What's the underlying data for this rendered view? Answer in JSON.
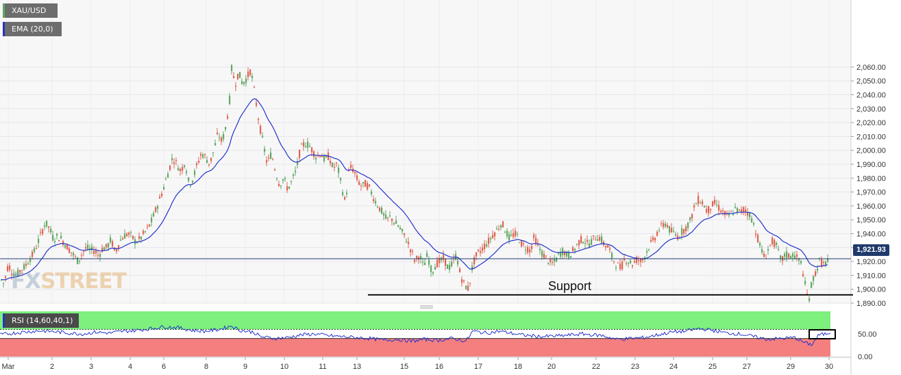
{
  "symbol_tag": "XAU/USD",
  "ema_tag": "EMA (20,0)",
  "rsi_tag": "RSI (14,60,40,1)",
  "current_price_label": "1,921.93",
  "support_label": "Support",
  "watermark": {
    "left": "FX",
    "right": "STREET"
  },
  "colors": {
    "up_candle": "#5fa862",
    "down_candle": "#e0624f",
    "ema_line": "#2233cc",
    "rsi_line": "#2233cc",
    "rsi_overbought_zone": "#7df07d",
    "rsi_oversold_zone": "#f47f7f",
    "price_badge": "#1f3a6b"
  },
  "chart_data": [
    {
      "type": "candlestick",
      "title": "XAU/USD",
      "indicator": "EMA (20,0)",
      "x_ticks": [
        "Mar",
        "2",
        "3",
        "4",
        "6",
        "8",
        "9",
        "10",
        "11",
        "13",
        "15",
        "16",
        "17",
        "18",
        "20",
        "22",
        "23",
        "24",
        "25",
        "27",
        "29",
        "30"
      ],
      "ylim": [
        1887,
        2071
      ],
      "y_ticks": [
        1890,
        1900,
        1910,
        1920,
        1930,
        1940,
        1950,
        1960,
        1970,
        1980,
        1990,
        2000,
        2010,
        2020,
        2030,
        2040,
        2050,
        2060
      ],
      "y_tick_labels": [
        "1,890.00",
        "1,900.00",
        "1,910.00",
        "1,920.00",
        "1,930.00",
        "1,940.00",
        "1,950.00",
        "1,960.00",
        "1,970.00",
        "1,980.00",
        "1,990.00",
        "2,000.00",
        "2,010.00",
        "2,020.00",
        "2,030.00",
        "2,040.00",
        "2,050.00",
        "2,060.00"
      ],
      "current_price": 1921.93,
      "support_level": 1896,
      "path": [
        [
          0,
          1908
        ],
        [
          6,
          1904
        ],
        [
          12,
          1918
        ],
        [
          18,
          1912
        ],
        [
          24,
          1910
        ],
        [
          30,
          1914
        ],
        [
          36,
          1916
        ],
        [
          42,
          1921
        ],
        [
          48,
          1925
        ],
        [
          54,
          1932
        ],
        [
          60,
          1940
        ],
        [
          66,
          1948
        ],
        [
          72,
          1944
        ],
        [
          78,
          1936
        ],
        [
          84,
          1938
        ],
        [
          90,
          1936
        ],
        [
          96,
          1932
        ],
        [
          102,
          1928
        ],
        [
          108,
          1924
        ],
        [
          114,
          1920
        ],
        [
          120,
          1926
        ],
        [
          126,
          1930
        ],
        [
          132,
          1928
        ],
        [
          138,
          1928
        ],
        [
          144,
          1924
        ],
        [
          150,
          1930
        ],
        [
          156,
          1930
        ],
        [
          162,
          1936
        ],
        [
          168,
          1926
        ],
        [
          174,
          1934
        ],
        [
          180,
          1938
        ],
        [
          186,
          1940
        ],
        [
          192,
          1938
        ],
        [
          198,
          1934
        ],
        [
          204,
          1936
        ],
        [
          210,
          1940
        ],
        [
          216,
          1944
        ],
        [
          222,
          1950
        ],
        [
          228,
          1958
        ],
        [
          234,
          1966
        ],
        [
          240,
          1975
        ],
        [
          246,
          1985
        ],
        [
          252,
          1995
        ],
        [
          258,
          1990
        ],
        [
          264,
          1985
        ],
        [
          270,
          1992
        ],
        [
          276,
          1975
        ],
        [
          282,
          1980
        ],
        [
          288,
          1990
        ],
        [
          294,
          1998
        ],
        [
          300,
          1995
        ],
        [
          306,
          1990
        ],
        [
          312,
          2000
        ],
        [
          318,
          2012
        ],
        [
          324,
          2006
        ],
        [
          330,
          2018
        ],
        [
          336,
          2040
        ],
        [
          339,
          2068
        ],
        [
          342,
          2045
        ],
        [
          348,
          2056
        ],
        [
          354,
          2048
        ],
        [
          360,
          2052
        ],
        [
          366,
          2058
        ],
        [
          372,
          2040
        ],
        [
          378,
          2020
        ],
        [
          384,
          2005
        ],
        [
          390,
          1990
        ],
        [
          396,
          1998
        ],
        [
          402,
          1985
        ],
        [
          408,
          1975
        ],
        [
          414,
          1980
        ],
        [
          420,
          1972
        ],
        [
          426,
          1978
        ],
        [
          432,
          1985
        ],
        [
          438,
          2000
        ],
        [
          444,
          2005
        ],
        [
          450,
          2004
        ],
        [
          456,
          2000
        ],
        [
          462,
          1995
        ],
        [
          468,
          1998
        ],
        [
          474,
          1993
        ],
        [
          480,
          1996
        ],
        [
          486,
          1987
        ],
        [
          492,
          1990
        ],
        [
          498,
          1975
        ],
        [
          504,
          1962
        ],
        [
          510,
          1988
        ],
        [
          516,
          1986
        ],
        [
          522,
          1978
        ],
        [
          528,
          1974
        ],
        [
          534,
          1976
        ],
        [
          540,
          1972
        ],
        [
          546,
          1965
        ],
        [
          552,
          1960
        ],
        [
          558,
          1955
        ],
        [
          564,
          1950
        ],
        [
          570,
          1952
        ],
        [
          576,
          1948
        ],
        [
          582,
          1945
        ],
        [
          588,
          1940
        ],
        [
          594,
          1935
        ],
        [
          600,
          1928
        ],
        [
          606,
          1920
        ],
        [
          612,
          1925
        ],
        [
          618,
          1916
        ],
        [
          624,
          1925
        ],
        [
          630,
          1912
        ],
        [
          636,
          1918
        ],
        [
          642,
          1920
        ],
        [
          648,
          1922
        ],
        [
          654,
          1915
        ],
        [
          660,
          1918
        ],
        [
          666,
          1925
        ],
        [
          672,
          1910
        ],
        [
          678,
          1903
        ],
        [
          684,
          1900
        ],
        [
          690,
          1918
        ],
        [
          696,
          1925
        ],
        [
          702,
          1928
        ],
        [
          708,
          1932
        ],
        [
          714,
          1935
        ],
        [
          720,
          1940
        ],
        [
          726,
          1943
        ],
        [
          732,
          1948
        ],
        [
          738,
          1942
        ],
        [
          744,
          1936
        ],
        [
          750,
          1940
        ],
        [
          756,
          1938
        ],
        [
          762,
          1932
        ],
        [
          768,
          1930
        ],
        [
          774,
          1928
        ],
        [
          780,
          1938
        ],
        [
          786,
          1930
        ],
        [
          792,
          1925
        ],
        [
          798,
          1922
        ],
        [
          804,
          1918
        ],
        [
          810,
          1920
        ],
        [
          816,
          1925
        ],
        [
          822,
          1928
        ],
        [
          828,
          1924
        ],
        [
          834,
          1926
        ],
        [
          840,
          1930
        ],
        [
          846,
          1935
        ],
        [
          852,
          1936
        ],
        [
          858,
          1932
        ],
        [
          864,
          1935
        ],
        [
          870,
          1938
        ],
        [
          876,
          1937
        ],
        [
          882,
          1932
        ],
        [
          888,
          1930
        ],
        [
          894,
          1922
        ],
        [
          900,
          1918
        ],
        [
          906,
          1915
        ],
        [
          912,
          1922
        ],
        [
          918,
          1920
        ],
        [
          924,
          1918
        ],
        [
          930,
          1922
        ],
        [
          936,
          1920
        ],
        [
          942,
          1925
        ],
        [
          948,
          1932
        ],
        [
          954,
          1935
        ],
        [
          960,
          1942
        ],
        [
          966,
          1945
        ],
        [
          972,
          1948
        ],
        [
          978,
          1942
        ],
        [
          984,
          1940
        ],
        [
          990,
          1938
        ],
        [
          996,
          1942
        ],
        [
          1002,
          1945
        ],
        [
          1008,
          1950
        ],
        [
          1014,
          1960
        ],
        [
          1020,
          1965
        ],
        [
          1026,
          1962
        ],
        [
          1032,
          1956
        ],
        [
          1038,
          1960
        ],
        [
          1044,
          1962
        ],
        [
          1050,
          1958
        ],
        [
          1056,
          1955
        ],
        [
          1062,
          1952
        ],
        [
          1068,
          1955
        ],
        [
          1074,
          1958
        ],
        [
          1080,
          1955
        ],
        [
          1086,
          1958
        ],
        [
          1092,
          1955
        ],
        [
          1098,
          1950
        ],
        [
          1104,
          1940
        ],
        [
          1110,
          1930
        ],
        [
          1116,
          1922
        ],
        [
          1122,
          1930
        ],
        [
          1128,
          1935
        ],
        [
          1134,
          1930
        ],
        [
          1140,
          1920
        ],
        [
          1146,
          1925
        ],
        [
          1152,
          1924
        ],
        [
          1158,
          1925
        ],
        [
          1164,
          1922
        ],
        [
          1170,
          1918
        ],
        [
          1176,
          1900
        ],
        [
          1180,
          1892
        ],
        [
          1185,
          1905
        ],
        [
          1190,
          1912
        ],
        [
          1196,
          1920
        ],
        [
          1202,
          1918
        ],
        [
          1208,
          1920
        ],
        [
          1210,
          1922
        ]
      ]
    },
    {
      "type": "line",
      "title": "RSI (14,60,40,1)",
      "ylim": [
        0,
        100
      ],
      "y_ticks": [
        0,
        50
      ],
      "y_tick_labels": [
        "0.00",
        "50.00"
      ],
      "bands": {
        "upper": 60,
        "lower": 40
      },
      "path": [
        [
          0,
          48
        ],
        [
          20,
          52
        ],
        [
          40,
          55
        ],
        [
          60,
          57
        ],
        [
          80,
          55
        ],
        [
          100,
          52
        ],
        [
          120,
          50
        ],
        [
          140,
          54
        ],
        [
          160,
          52
        ],
        [
          180,
          56
        ],
        [
          200,
          58
        ],
        [
          220,
          62
        ],
        [
          240,
          66
        ],
        [
          260,
          64
        ],
        [
          280,
          58
        ],
        [
          300,
          56
        ],
        [
          320,
          60
        ],
        [
          338,
          68
        ],
        [
          350,
          58
        ],
        [
          370,
          54
        ],
        [
          380,
          44
        ],
        [
          400,
          40
        ],
        [
          420,
          42
        ],
        [
          440,
          48
        ],
        [
          460,
          50
        ],
        [
          480,
          46
        ],
        [
          500,
          44
        ],
        [
          520,
          42
        ],
        [
          540,
          40
        ],
        [
          560,
          36
        ],
        [
          580,
          38
        ],
        [
          600,
          34
        ],
        [
          620,
          38
        ],
        [
          640,
          36
        ],
        [
          660,
          40
        ],
        [
          680,
          34
        ],
        [
          690,
          56
        ],
        [
          710,
          52
        ],
        [
          730,
          56
        ],
        [
          760,
          48
        ],
        [
          790,
          44
        ],
        [
          820,
          46
        ],
        [
          850,
          50
        ],
        [
          880,
          46
        ],
        [
          900,
          38
        ],
        [
          920,
          40
        ],
        [
          940,
          42
        ],
        [
          960,
          48
        ],
        [
          980,
          54
        ],
        [
          1000,
          56
        ],
        [
          1020,
          62
        ],
        [
          1040,
          58
        ],
        [
          1060,
          52
        ],
        [
          1080,
          50
        ],
        [
          1100,
          44
        ],
        [
          1120,
          38
        ],
        [
          1140,
          40
        ],
        [
          1160,
          42
        ],
        [
          1175,
          30
        ],
        [
          1185,
          26
        ],
        [
          1195,
          48
        ],
        [
          1205,
          50
        ],
        [
          1212,
          54
        ]
      ]
    }
  ]
}
